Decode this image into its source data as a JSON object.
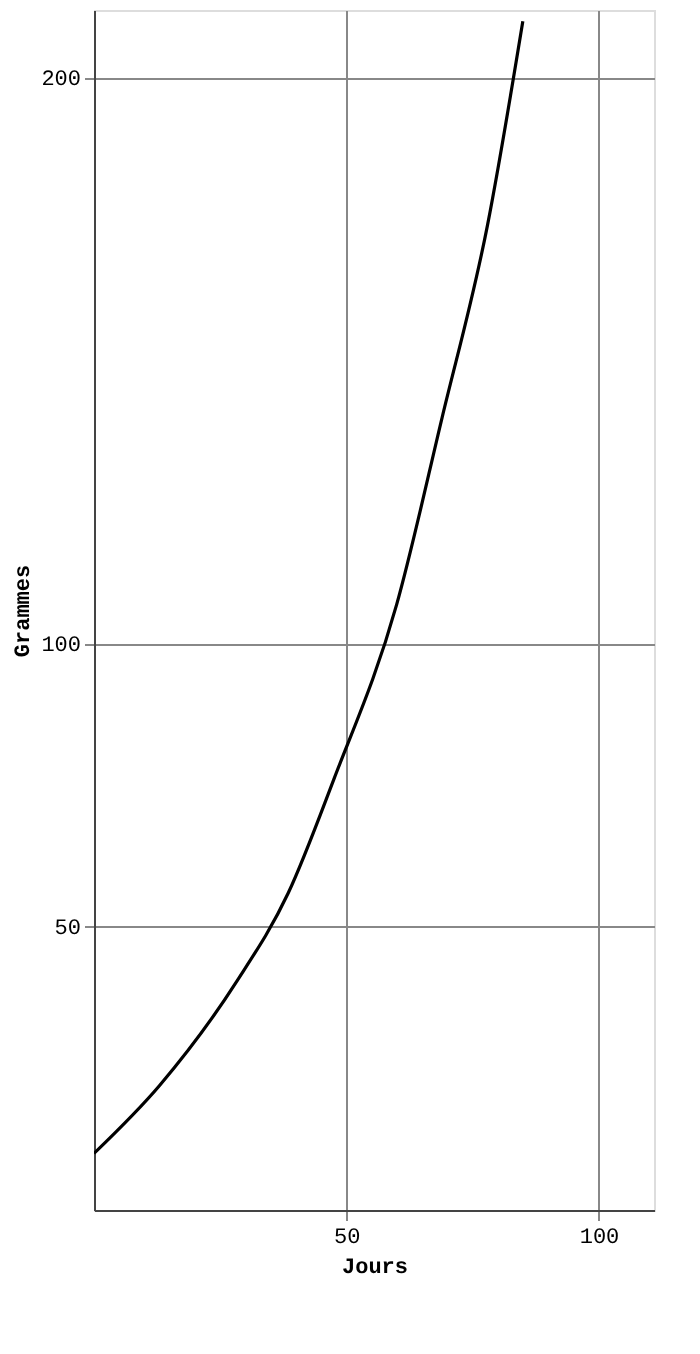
{
  "chart_data": {
    "type": "line",
    "xlabel": "Jours",
    "ylabel": "Grammes",
    "x": [
      0,
      13,
      28,
      38.5,
      47.5,
      60,
      69,
      78,
      85
    ],
    "series": [
      {
        "color": "#000000",
        "values": [
          10,
          22,
          40,
          56,
          76,
          107,
          140,
          174,
          210
        ]
      }
    ],
    "xlim": [
      0,
      111
    ],
    "ylim": [
      0,
      212
    ],
    "xticks": [
      50,
      100
    ],
    "yticks": [
      50,
      100,
      200
    ],
    "grid": true,
    "marker": "none",
    "line_style": "solid"
  }
}
